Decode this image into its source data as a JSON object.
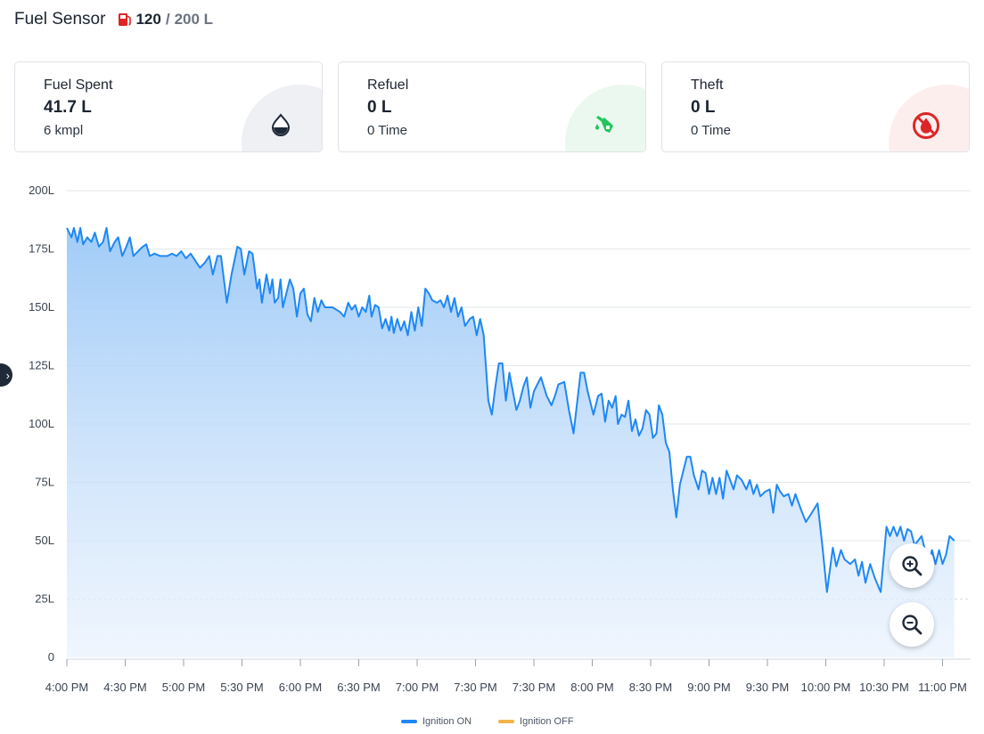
{
  "header": {
    "title": "Fuel Sensor",
    "current": "120",
    "separator": "/",
    "capacity": "200 L",
    "icon": "fuel-pump-icon",
    "icon_color": "#e02424"
  },
  "cards": [
    {
      "label": "Fuel Spent",
      "value": "41.7 L",
      "sub": "6 kmpl",
      "icon": "fuel-drop-icon",
      "accent": "#1f2937",
      "bg": "#eef0f3"
    },
    {
      "label": "Refuel",
      "value": "0 L",
      "sub": "0 Time",
      "icon": "fuel-nozzle-icon",
      "accent": "#22c55e",
      "bg": "#eaf8ef"
    },
    {
      "label": "Theft",
      "value": "0 L",
      "sub": "0 Time",
      "icon": "no-fuel-icon",
      "accent": "#dc2626",
      "bg": "#fdeeee"
    }
  ],
  "controls": {
    "side_tab_icon": "chevron-right-icon",
    "zoom_in_icon": "zoom-in-icon",
    "zoom_out_icon": "zoom-out-icon"
  },
  "legend": [
    {
      "label": "Ignition ON",
      "color": "#1e88f5"
    },
    {
      "label": "Ignition OFF",
      "color": "#f5b34a"
    }
  ],
  "chart_data": {
    "type": "area",
    "ylim": [
      0,
      200
    ],
    "y_ticks": [
      0,
      25,
      50,
      75,
      100,
      125,
      150,
      175,
      200
    ],
    "y_tick_labels": [
      "0",
      "25L",
      "50L",
      "75L",
      "100L",
      "125L",
      "150L",
      "175L",
      "200L"
    ],
    "x_range": [
      0,
      15.25
    ],
    "x_ticks": [
      0,
      1,
      2,
      3,
      4,
      5,
      6,
      7,
      8,
      9,
      10,
      11,
      12,
      13,
      14,
      15
    ],
    "x_tick_labels": [
      "4:00 PM",
      "4:30 PM",
      "5:00 PM",
      "5:30 PM",
      "6:00 PM",
      "6:30 PM",
      "7:00 PM",
      "7:30 PM",
      "7:30 PM",
      "8:00 PM",
      "8:30 PM",
      "9:00 PM",
      "9:30 PM",
      "10:00 PM",
      "10:30 PM",
      "11:00 PM"
    ],
    "grid": true,
    "legend_position": "bottom-center",
    "series": [
      {
        "name": "Ignition ON",
        "color": "#1e88f5",
        "points": [
          [
            0,
            184
          ],
          [
            0.08,
            180
          ],
          [
            0.12,
            184
          ],
          [
            0.18,
            178
          ],
          [
            0.23,
            184
          ],
          [
            0.28,
            177
          ],
          [
            0.35,
            180
          ],
          [
            0.42,
            178
          ],
          [
            0.48,
            182
          ],
          [
            0.55,
            176
          ],
          [
            0.62,
            178
          ],
          [
            0.68,
            184
          ],
          [
            0.74,
            174
          ],
          [
            0.82,
            178
          ],
          [
            0.88,
            180
          ],
          [
            0.95,
            172
          ],
          [
            1.02,
            176
          ],
          [
            1.08,
            180
          ],
          [
            1.14,
            172
          ],
          [
            1.22,
            174
          ],
          [
            1.3,
            176
          ],
          [
            1.36,
            177
          ],
          [
            1.42,
            172
          ],
          [
            1.5,
            173
          ],
          [
            1.6,
            172
          ],
          [
            1.72,
            172
          ],
          [
            1.8,
            173
          ],
          [
            1.88,
            172
          ],
          [
            1.96,
            174
          ],
          [
            2.04,
            171
          ],
          [
            2.12,
            173
          ],
          [
            2.2,
            170
          ],
          [
            2.28,
            167
          ],
          [
            2.36,
            169
          ],
          [
            2.44,
            172
          ],
          [
            2.5,
            164
          ],
          [
            2.58,
            172
          ],
          [
            2.64,
            172
          ],
          [
            2.74,
            152
          ],
          [
            2.82,
            164
          ],
          [
            2.92,
            176
          ],
          [
            2.98,
            175
          ],
          [
            3.04,
            164
          ],
          [
            3.12,
            174
          ],
          [
            3.18,
            173
          ],
          [
            3.26,
            158
          ],
          [
            3.3,
            162
          ],
          [
            3.34,
            152
          ],
          [
            3.42,
            164
          ],
          [
            3.48,
            156
          ],
          [
            3.52,
            162
          ],
          [
            3.56,
            152
          ],
          [
            3.62,
            154
          ],
          [
            3.66,
            162
          ],
          [
            3.7,
            150
          ],
          [
            3.76,
            156
          ],
          [
            3.82,
            162
          ],
          [
            3.88,
            158
          ],
          [
            3.94,
            146
          ],
          [
            4.0,
            156
          ],
          [
            4.06,
            158
          ],
          [
            4.12,
            147
          ],
          [
            4.18,
            144
          ],
          [
            4.24,
            154
          ],
          [
            4.3,
            148
          ],
          [
            4.36,
            153
          ],
          [
            4.42,
            150
          ],
          [
            4.55,
            150
          ],
          [
            4.68,
            148
          ],
          [
            4.75,
            146
          ],
          [
            4.82,
            152
          ],
          [
            4.88,
            149
          ],
          [
            4.94,
            151
          ],
          [
            5.0,
            146
          ],
          [
            5.06,
            150
          ],
          [
            5.12,
            148
          ],
          [
            5.18,
            155
          ],
          [
            5.22,
            146
          ],
          [
            5.28,
            151
          ],
          [
            5.34,
            150
          ],
          [
            5.4,
            141
          ],
          [
            5.46,
            145
          ],
          [
            5.52,
            140
          ],
          [
            5.56,
            146
          ],
          [
            5.6,
            139
          ],
          [
            5.66,
            145
          ],
          [
            5.72,
            140
          ],
          [
            5.78,
            144
          ],
          [
            5.84,
            138
          ],
          [
            5.9,
            148
          ],
          [
            5.96,
            140
          ],
          [
            6.02,
            150
          ],
          [
            6.08,
            142
          ],
          [
            6.14,
            158
          ],
          [
            6.2,
            156
          ],
          [
            6.26,
            153
          ],
          [
            6.34,
            152
          ],
          [
            6.4,
            153
          ],
          [
            6.46,
            150
          ],
          [
            6.52,
            155
          ],
          [
            6.58,
            148
          ],
          [
            6.64,
            154
          ],
          [
            6.7,
            146
          ],
          [
            6.76,
            150
          ],
          [
            6.82,
            142
          ],
          [
            6.9,
            145
          ],
          [
            6.96,
            146
          ],
          [
            7.02,
            138
          ],
          [
            7.08,
            145
          ],
          [
            7.14,
            138
          ],
          [
            7.22,
            110
          ],
          [
            7.28,
            104
          ],
          [
            7.34,
            116
          ],
          [
            7.4,
            126
          ],
          [
            7.46,
            126
          ],
          [
            7.52,
            110
          ],
          [
            7.58,
            122
          ],
          [
            7.64,
            114
          ],
          [
            7.7,
            106
          ],
          [
            7.76,
            110
          ],
          [
            7.82,
            116
          ],
          [
            7.88,
            120
          ],
          [
            7.94,
            107
          ],
          [
            8.0,
            114
          ],
          [
            8.06,
            117
          ],
          [
            8.12,
            120
          ],
          [
            8.22,
            112
          ],
          [
            8.3,
            108
          ],
          [
            8.36,
            112
          ],
          [
            8.42,
            117
          ],
          [
            8.52,
            118
          ],
          [
            8.6,
            106
          ],
          [
            8.68,
            96
          ],
          [
            8.8,
            122
          ],
          [
            8.86,
            122
          ],
          [
            8.92,
            114
          ],
          [
            9.02,
            104
          ],
          [
            9.1,
            112
          ],
          [
            9.16,
            113
          ],
          [
            9.22,
            101
          ],
          [
            9.28,
            110
          ],
          [
            9.34,
            107
          ],
          [
            9.4,
            112
          ],
          [
            9.44,
            100
          ],
          [
            9.5,
            104
          ],
          [
            9.56,
            103
          ],
          [
            9.62,
            110
          ],
          [
            9.68,
            97
          ],
          [
            9.74,
            102
          ],
          [
            9.8,
            95
          ],
          [
            9.86,
            98
          ],
          [
            9.92,
            106
          ],
          [
            9.98,
            104
          ],
          [
            10.04,
            94
          ],
          [
            10.1,
            96
          ],
          [
            10.14,
            108
          ],
          [
            10.2,
            104
          ],
          [
            10.26,
            92
          ],
          [
            10.32,
            88
          ],
          [
            10.38,
            72
          ],
          [
            10.44,
            60
          ],
          [
            10.5,
            74
          ],
          [
            10.56,
            80
          ],
          [
            10.62,
            86
          ],
          [
            10.68,
            86
          ],
          [
            10.74,
            78
          ],
          [
            10.82,
            72
          ],
          [
            10.88,
            80
          ],
          [
            10.94,
            79
          ],
          [
            11.0,
            70
          ],
          [
            11.06,
            77
          ],
          [
            11.12,
            70
          ],
          [
            11.18,
            77
          ],
          [
            11.24,
            68
          ],
          [
            11.3,
            80
          ],
          [
            11.36,
            76
          ],
          [
            11.42,
            72
          ],
          [
            11.48,
            78
          ],
          [
            11.56,
            76
          ],
          [
            11.64,
            72
          ],
          [
            11.7,
            76
          ],
          [
            11.76,
            70
          ],
          [
            11.82,
            74
          ],
          [
            11.88,
            69
          ],
          [
            11.96,
            71
          ],
          [
            12.04,
            72
          ],
          [
            12.1,
            62
          ],
          [
            12.16,
            74
          ],
          [
            12.22,
            71
          ],
          [
            12.28,
            69
          ],
          [
            12.36,
            70
          ],
          [
            12.42,
            65
          ],
          [
            12.48,
            70
          ],
          [
            12.58,
            63
          ],
          [
            12.66,
            58
          ],
          [
            12.76,
            62
          ],
          [
            12.86,
            66
          ],
          [
            12.94,
            48
          ],
          [
            13.02,
            28
          ],
          [
            13.12,
            47
          ],
          [
            13.18,
            39
          ],
          [
            13.26,
            46
          ],
          [
            13.32,
            42
          ],
          [
            13.42,
            40
          ],
          [
            13.5,
            42
          ],
          [
            13.56,
            35
          ],
          [
            13.62,
            41
          ],
          [
            13.68,
            32
          ],
          [
            13.76,
            40
          ],
          [
            13.84,
            34
          ],
          [
            13.94,
            28
          ],
          [
            14.04,
            56
          ],
          [
            14.1,
            52
          ],
          [
            14.16,
            56
          ],
          [
            14.22,
            52
          ],
          [
            14.28,
            56
          ],
          [
            14.34,
            50
          ],
          [
            14.4,
            55
          ],
          [
            14.46,
            54
          ],
          [
            14.52,
            48
          ],
          [
            14.58,
            50
          ],
          [
            14.64,
            52
          ],
          [
            14.7,
            46
          ],
          [
            14.76,
            40
          ],
          [
            14.82,
            46
          ],
          [
            14.88,
            40
          ],
          [
            14.94,
            46
          ],
          [
            15.0,
            40
          ],
          [
            15.06,
            44
          ],
          [
            15.12,
            52
          ],
          [
            15.2,
            50
          ]
        ]
      },
      {
        "name": "Ignition OFF",
        "color": "#f5b34a",
        "points": []
      }
    ]
  }
}
